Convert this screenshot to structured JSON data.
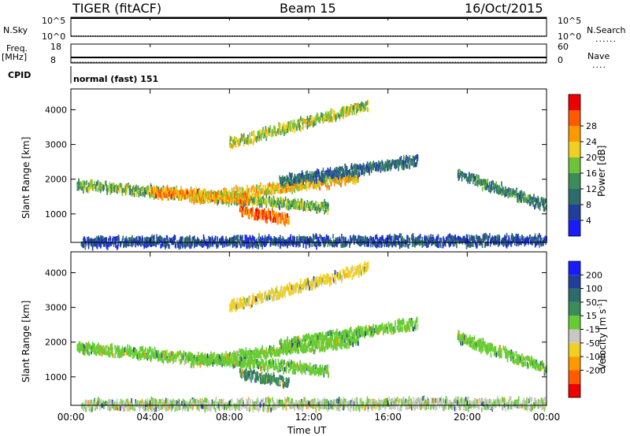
{
  "header": {
    "radar": "TIGER (fitACF)",
    "beam": "Beam 15",
    "date": "16/Oct/2015"
  },
  "strips": {
    "nsky_label": "N.Sky",
    "nsearch_label": "N.Search",
    "nsky_ticks": [
      "10^5",
      "10^0"
    ],
    "nsearch_ticks": [
      "10^5",
      "10^0"
    ],
    "freq_label_1": "Freq.",
    "freq_label_2": "[MHz]",
    "freq_ticks": [
      "18",
      "8"
    ],
    "nave_label": "Nave",
    "nave_ticks": [
      "60",
      "0"
    ],
    "cpid_label": "CPID",
    "cpid_text": "normal (fast) 151"
  },
  "colors": {
    "power_scale": [
      "#1a1aff",
      "#1f3f9a",
      "#2e6b6b",
      "#3c8c5a",
      "#6fc23a",
      "#f0d020",
      "#ff9900",
      "#ff5a00",
      "#ee0000"
    ],
    "velocity_scale": [
      "#1a1aff",
      "#1f3f9a",
      "#2e6b6b",
      "#3c8c5a",
      "#66cc33",
      "#c8c8c0",
      "#f0d020",
      "#ff9900",
      "#ff5a00",
      "#ee0000"
    ],
    "ground_scatter": "#c8c8c0"
  },
  "chart_data": [
    {
      "type": "heatmap",
      "title": "",
      "xlabel": "Time UT",
      "ylabel": "Slant Range [km]",
      "x_ticks": [
        "00:00",
        "04:00",
        "08:00",
        "12:00",
        "16:00",
        "20:00",
        "00:00"
      ],
      "y_ticks": [
        "1000",
        "2000",
        "3000",
        "4000"
      ],
      "xlim": [
        0,
        24
      ],
      "ylim": [
        180,
        4600
      ],
      "colorbar": {
        "label": "Power [dB]",
        "ticks": [
          "4",
          "8",
          "12",
          "16",
          "20",
          "24",
          "28"
        ],
        "range": [
          0,
          30
        ]
      },
      "regions": [
        {
          "t_start": 0.3,
          "t_end": 13.0,
          "range_start": 1900,
          "range_end": 1250,
          "power": 14
        },
        {
          "t_start": 4.0,
          "t_end": 9.0,
          "range_start": 1700,
          "range_end": 1500,
          "power": 22
        },
        {
          "t_start": 6.0,
          "t_end": 14.5,
          "range_start": 1500,
          "range_end": 2100,
          "power": 20
        },
        {
          "t_start": 8.5,
          "t_end": 11.0,
          "range_start": 1150,
          "range_end": 900,
          "power": 24
        },
        {
          "t_start": 10.5,
          "t_end": 17.5,
          "range_start": 2000,
          "range_end": 2600,
          "power": 8
        },
        {
          "t_start": 8.0,
          "t_end": 15.0,
          "range_start": 3100,
          "range_end": 4200,
          "power": 16
        },
        {
          "t_start": 19.5,
          "t_end": 24.0,
          "range_start": 2200,
          "range_end": 1300,
          "power": 10
        },
        {
          "t_start": 0.5,
          "t_end": 24.0,
          "range_start": 250,
          "range_end": 300,
          "power": 6
        }
      ]
    },
    {
      "type": "heatmap",
      "title": "",
      "xlabel": "Time UT",
      "ylabel": "Slant Range [km]",
      "x_ticks": [
        "00:00",
        "04:00",
        "08:00",
        "12:00",
        "16:00",
        "20:00",
        "00:00"
      ],
      "y_ticks": [
        "1000",
        "2000",
        "3000",
        "4000"
      ],
      "xlim": [
        0,
        24
      ],
      "ylim": [
        180,
        4600
      ],
      "colorbar": {
        "label": "Velocity [m s-1]",
        "ticks": [
          "200",
          "100",
          "50",
          "15",
          "-15",
          "-50",
          "-100",
          "-200"
        ],
        "range": [
          -250,
          250
        ]
      },
      "regions": [
        {
          "t_start": 0.3,
          "t_end": 13.0,
          "range_start": 1900,
          "range_end": 1250,
          "velocity": 0
        },
        {
          "t_start": 6.0,
          "t_end": 14.5,
          "range_start": 1500,
          "range_end": 2100,
          "velocity": 0
        },
        {
          "t_start": 8.5,
          "t_end": 11.0,
          "range_start": 1150,
          "range_end": 900,
          "velocity": 40
        },
        {
          "t_start": 10.5,
          "t_end": 17.5,
          "range_start": 2000,
          "range_end": 2600,
          "velocity": 0
        },
        {
          "t_start": 8.0,
          "t_end": 15.0,
          "range_start": 3100,
          "range_end": 4200,
          "velocity": -60
        },
        {
          "t_start": 19.5,
          "t_end": 24.0,
          "range_start": 2200,
          "range_end": 1300,
          "velocity": 0
        },
        {
          "t_start": 0.5,
          "t_end": 24.0,
          "range_start": 250,
          "range_end": 300,
          "velocity": -20
        }
      ]
    }
  ]
}
